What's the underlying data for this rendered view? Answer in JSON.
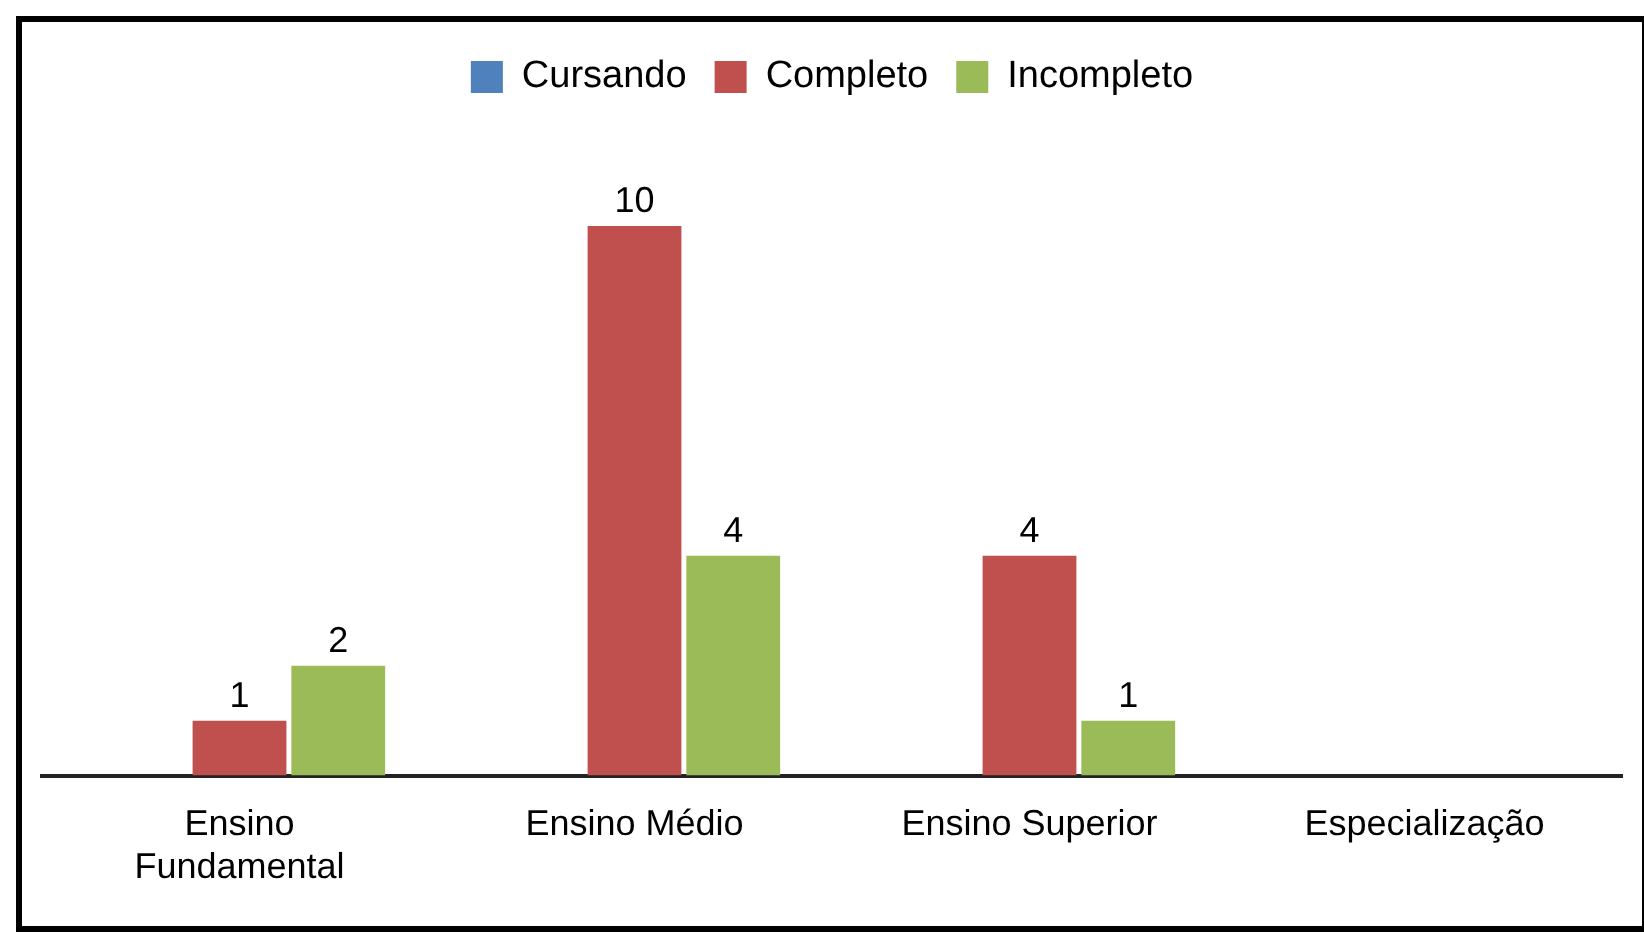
{
  "chart_data": {
    "type": "bar",
    "categories": [
      "Ensino Fundamental",
      "Ensino Médio",
      "Ensino Superior",
      "Especialização"
    ],
    "series": [
      {
        "name": "Cursando",
        "color": "#4f81bd",
        "values": [
          0,
          0,
          0,
          0
        ],
        "value_labels": [
          null,
          null,
          null,
          null
        ]
      },
      {
        "name": "Completo",
        "color": "#c0504d",
        "values": [
          1,
          10,
          4,
          0
        ],
        "value_labels": [
          "1",
          "10",
          "4",
          null
        ]
      },
      {
        "name": "Incompleto",
        "color": "#9bbb59",
        "values": [
          2,
          4,
          1,
          0
        ],
        "value_labels": [
          "2",
          "4",
          "1",
          null
        ]
      }
    ],
    "legend": "top",
    "grid": false
  }
}
